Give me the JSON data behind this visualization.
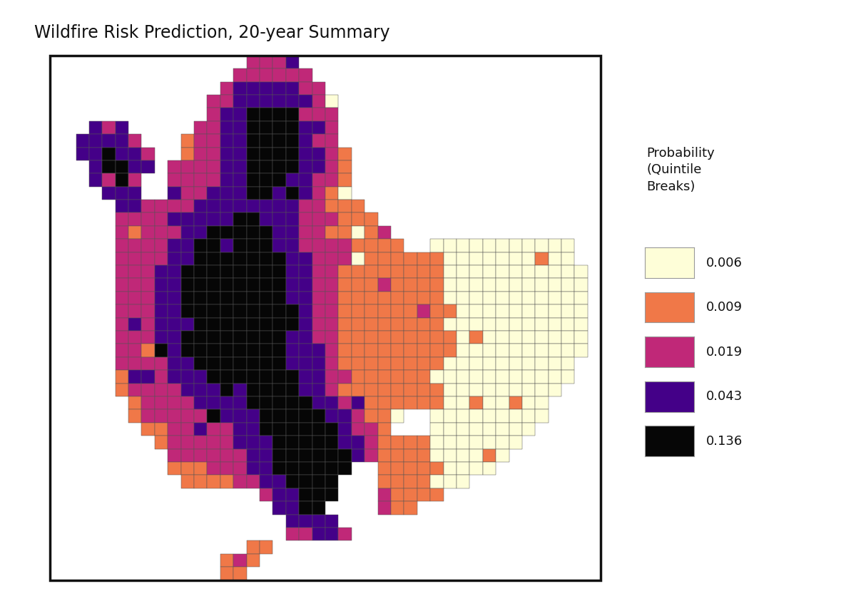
{
  "title": "Wildfire Risk Prediction, 20-year Summary",
  "legend_title": "Probability\n(Quintile\nBreaks)",
  "legend_labels": [
    "0.006",
    "0.009",
    "0.019",
    "0.043",
    "0.136"
  ],
  "colors": [
    "#FEFED8",
    "#F07848",
    "#C02878",
    "#440088",
    "#060606"
  ],
  "background": "#FFFFFF",
  "border_color": "#111111",
  "title_fontsize": 17,
  "legend_fontsize": 13,
  "cell_edge": "#555555",
  "cell_lw": 0.35
}
